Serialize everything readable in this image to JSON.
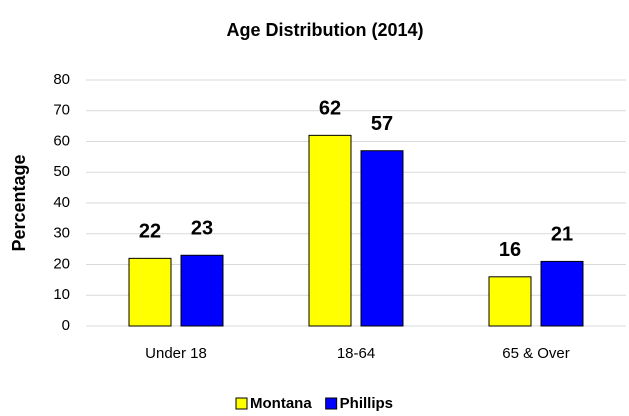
{
  "chart_data": {
    "type": "bar",
    "title": "Age Distribution (2014)",
    "y_label": "Percentage",
    "categories": [
      "Under 18",
      "18-64",
      "65 & Over"
    ],
    "series": [
      {
        "name": "Montana",
        "color": "#ffff00",
        "values": [
          22,
          62,
          16
        ]
      },
      {
        "name": "Phillips",
        "color": "#0000ff",
        "values": [
          23,
          57,
          21
        ]
      }
    ],
    "ylim": [
      0,
      80
    ],
    "yticks": [
      0,
      10,
      20,
      30,
      40,
      50,
      60,
      70,
      80
    ],
    "grid": true,
    "legend": "bottom"
  }
}
